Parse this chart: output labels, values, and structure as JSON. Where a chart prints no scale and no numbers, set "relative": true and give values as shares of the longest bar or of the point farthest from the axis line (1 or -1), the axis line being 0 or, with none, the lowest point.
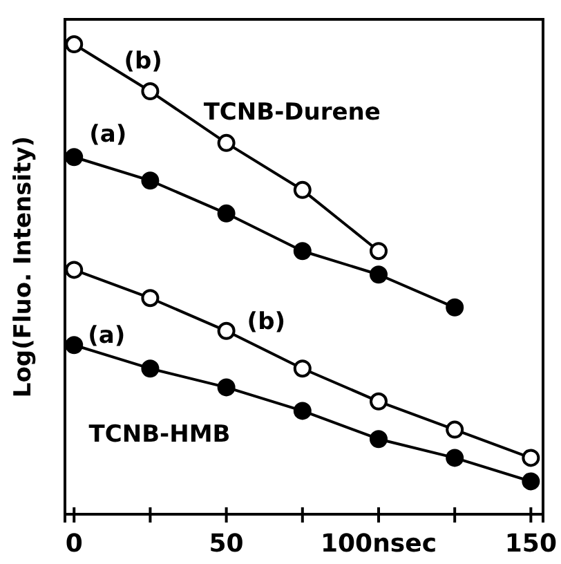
{
  "chart_data": {
    "type": "line",
    "ylabel": "Log(Fluo. Intensity)",
    "relative": true,
    "xlim": [
      -3,
      154
    ],
    "xticks": [
      0,
      {
        "value": 25,
        "label": null
      },
      50,
      {
        "value": 75,
        "label": null
      },
      {
        "value": 100,
        "label": "100nsec"
      },
      {
        "value": 125,
        "label": null
      },
      150
    ],
    "x": [
      0,
      25,
      50,
      75,
      100,
      125,
      150
    ],
    "series": [
      {
        "name": "(b)",
        "color": "#000000",
        "marker": "circle-open",
        "values": [
          1,
          0.9,
          0.79,
          0.69,
          0.56,
          null,
          null
        ]
      },
      {
        "name": "(a)",
        "color": "#000000",
        "marker": "circle",
        "values": [
          0.76,
          0.71,
          0.64,
          0.56,
          0.51,
          0.44,
          null
        ]
      },
      {
        "name": "(b)",
        "color": "#000000",
        "marker": "circle-open",
        "values": [
          0.52,
          0.46,
          0.39,
          0.31,
          0.24,
          0.18,
          0.12
        ]
      },
      {
        "name": "(a)",
        "color": "#000000",
        "marker": "circle",
        "values": [
          0.36,
          0.31,
          0.27,
          0.22,
          0.16,
          0.12,
          0.07
        ]
      }
    ],
    "annotations": [
      "TCNB-Durene",
      "TCNB-HMB"
    ],
    "grid": false
  }
}
